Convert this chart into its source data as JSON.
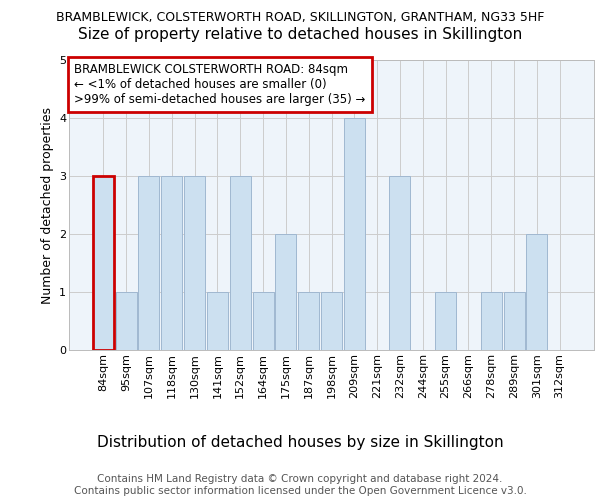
{
  "title": "BRAMBLEWICK, COLSTERWORTH ROAD, SKILLINGTON, GRANTHAM, NG33 5HF",
  "subtitle": "Size of property relative to detached houses in Skillington",
  "xlabel": "Distribution of detached houses by size in Skillington",
  "ylabel": "Number of detached properties",
  "categories": [
    "84sqm",
    "95sqm",
    "107sqm",
    "118sqm",
    "130sqm",
    "141sqm",
    "152sqm",
    "164sqm",
    "175sqm",
    "187sqm",
    "198sqm",
    "209sqm",
    "221sqm",
    "232sqm",
    "244sqm",
    "255sqm",
    "266sqm",
    "278sqm",
    "289sqm",
    "301sqm",
    "312sqm"
  ],
  "values": [
    3,
    1,
    3,
    3,
    3,
    1,
    3,
    1,
    2,
    1,
    1,
    4,
    0,
    3,
    0,
    1,
    0,
    1,
    1,
    2,
    0
  ],
  "highlight_index": 0,
  "bar_color": "#cce0f0",
  "bar_edge_color": "#a0b8d0",
  "highlight_bar_edge_color": "#cc0000",
  "annotation_text": "BRAMBLEWICK COLSTERWORTH ROAD: 84sqm\n← <1% of detached houses are smaller (0)\n>99% of semi-detached houses are larger (35) →",
  "annotation_box_facecolor": "#ffffff",
  "annotation_box_edgecolor": "#cc0000",
  "ylim": [
    0,
    5
  ],
  "yticks": [
    0,
    1,
    2,
    3,
    4,
    5
  ],
  "grid_color": "#cccccc",
  "plot_bg_color": "#eef4fa",
  "fig_bg_color": "#ffffff",
  "footer_line1": "Contains HM Land Registry data © Crown copyright and database right 2024.",
  "footer_line2": "Contains public sector information licensed under the Open Government Licence v3.0.",
  "title_fontsize": 9,
  "subtitle_fontsize": 11,
  "xlabel_fontsize": 11,
  "ylabel_fontsize": 9,
  "tick_fontsize": 8,
  "annotation_fontsize": 8.5,
  "footer_fontsize": 7.5
}
